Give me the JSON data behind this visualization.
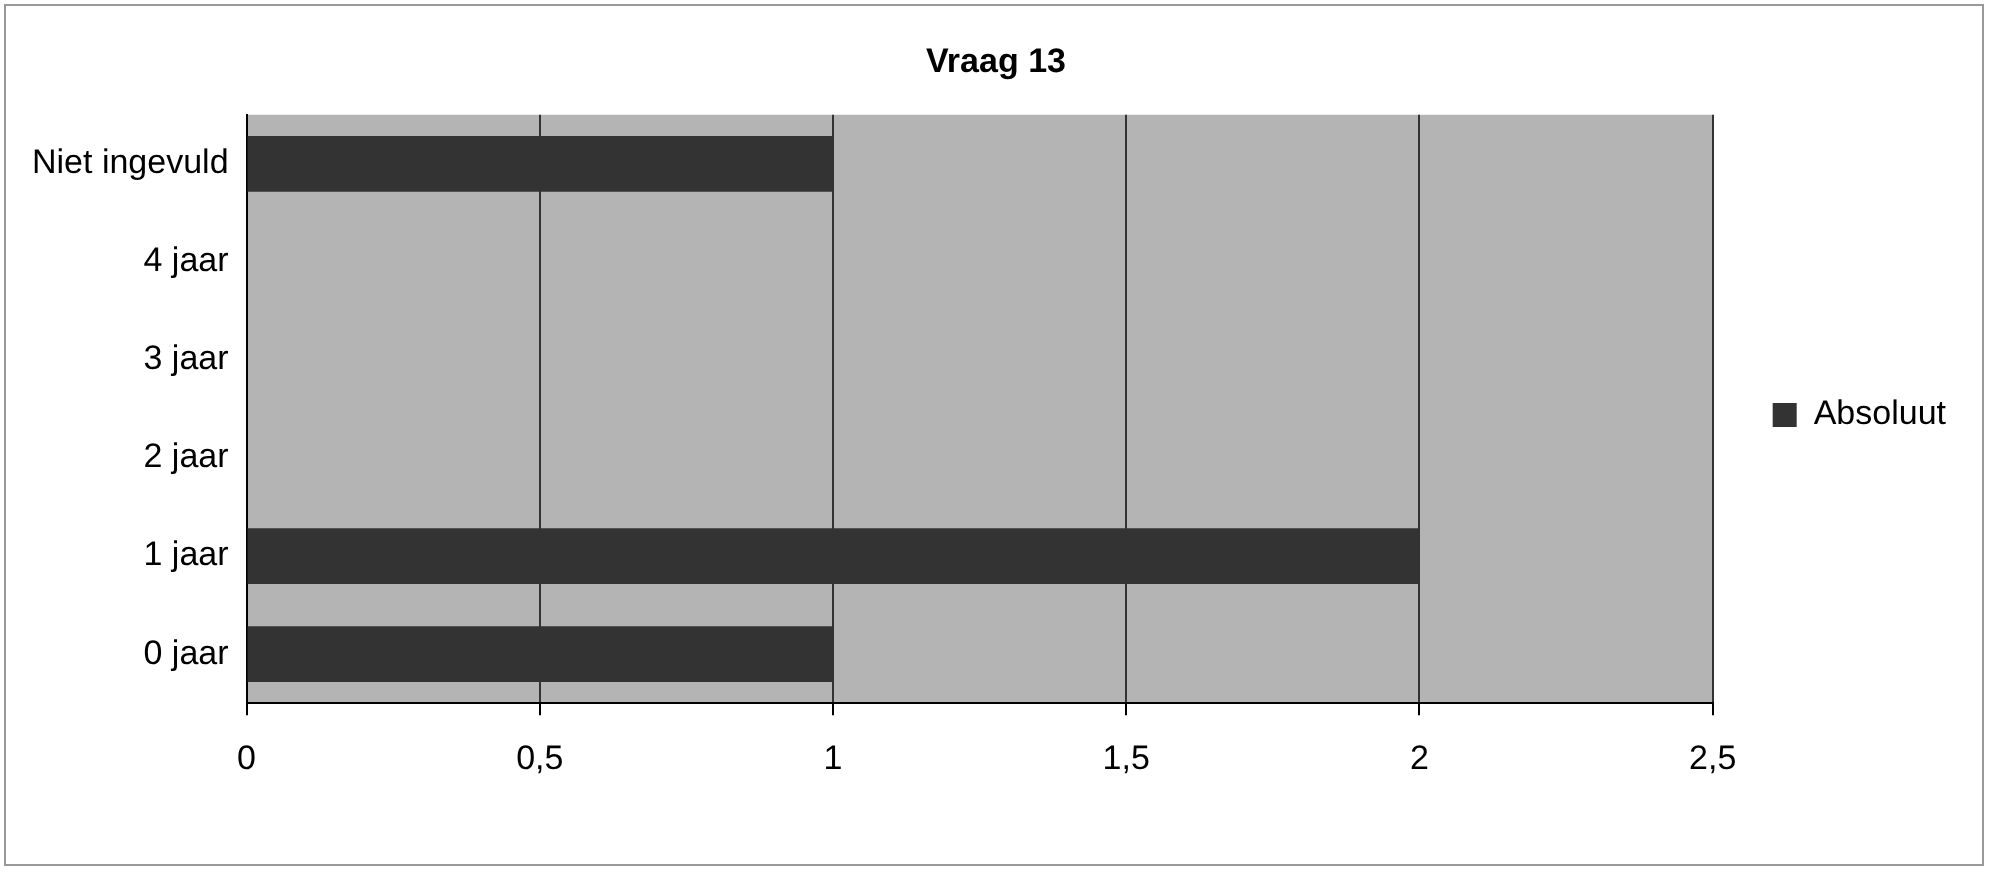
{
  "chart_data": {
    "type": "bar",
    "orientation": "horizontal",
    "title": "Vraag 13",
    "categories": [
      "Niet ingevuld",
      "4 jaar",
      "3 jaar",
      "2 jaar",
      "1 jaar",
      "0 jaar"
    ],
    "series": [
      {
        "name": "Absoluut",
        "color": "#333333",
        "values": [
          1,
          0,
          0,
          0,
          2,
          1
        ]
      }
    ],
    "xlim": [
      0,
      2.5
    ],
    "xticks": [
      0,
      {
        "value": 0.5,
        "label": "0,5"
      },
      1,
      {
        "value": 1.5,
        "label": "1,5"
      },
      2,
      {
        "value": 2.5,
        "label": "2,5"
      }
    ],
    "grid": "x",
    "legend": "right"
  }
}
